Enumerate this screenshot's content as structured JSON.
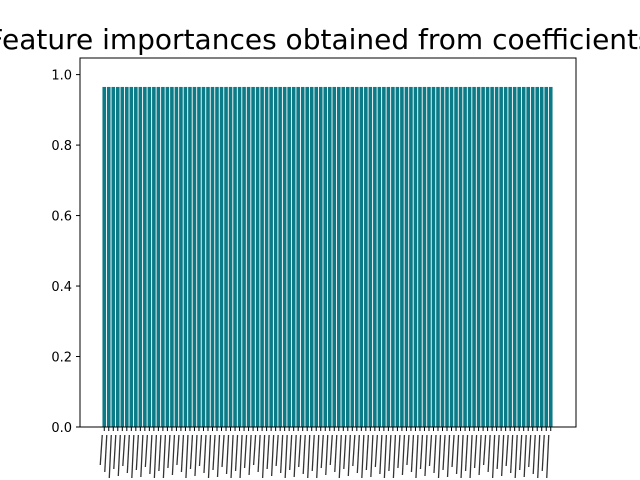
{
  "chart_data": {
    "type": "bar",
    "title": "Feature importances obtained from coefficients",
    "xlabel": "",
    "ylabel": "",
    "ylim": [
      0,
      1.0
    ],
    "yticks": [
      "0.0",
      "0.2",
      "0.4",
      "0.6",
      "0.8",
      "1.0"
    ],
    "bar_count": 100,
    "bar_value": 0.965,
    "bar_color": "#0b7c87",
    "grid": false,
    "x_tick_labels_note": "rotated, overlapping and illegible",
    "values": [
      0.965,
      0.965,
      0.965,
      0.965,
      0.965,
      0.965,
      0.965,
      0.965,
      0.965,
      0.965,
      0.965,
      0.965,
      0.965,
      0.965,
      0.965,
      0.965,
      0.965,
      0.965,
      0.965,
      0.965,
      0.965,
      0.965,
      0.965,
      0.965,
      0.965,
      0.965,
      0.965,
      0.965,
      0.965,
      0.965,
      0.965,
      0.965,
      0.965,
      0.965,
      0.965,
      0.965,
      0.965,
      0.965,
      0.965,
      0.965,
      0.965,
      0.965,
      0.965,
      0.965,
      0.965,
      0.965,
      0.965,
      0.965,
      0.965,
      0.965,
      0.965,
      0.965,
      0.965,
      0.965,
      0.965,
      0.965,
      0.965,
      0.965,
      0.965,
      0.965,
      0.965,
      0.965,
      0.965,
      0.965,
      0.965,
      0.965,
      0.965,
      0.965,
      0.965,
      0.965,
      0.965,
      0.965,
      0.965,
      0.965,
      0.965,
      0.965,
      0.965,
      0.965,
      0.965,
      0.965,
      0.965,
      0.965,
      0.965,
      0.965,
      0.965,
      0.965,
      0.965,
      0.965,
      0.965,
      0.965,
      0.965,
      0.965,
      0.965,
      0.965,
      0.965,
      0.965,
      0.965,
      0.965,
      0.965,
      0.965
    ]
  }
}
